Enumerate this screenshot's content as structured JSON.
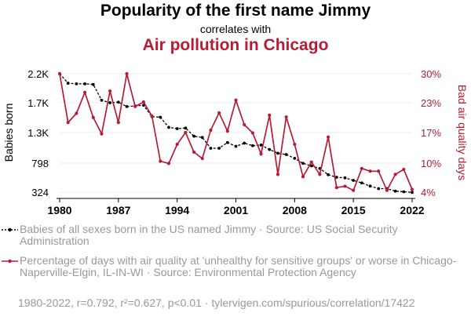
{
  "header": {
    "title": "Popularity of the first name Jimmy",
    "subtitle": "correlates with",
    "title2": "Air pollution in Chicago"
  },
  "legend": {
    "series1": "Babies of all sexes born in the US named Jimmy · Source: US Social Security Administration",
    "series2": "Percentage of days with air quality at 'unhealthy for sensitive groups' or worse in Chicago-Naperville-Elgin, IL-IN-WI · Source: Environmental Protection Agency"
  },
  "footer": "1980-2022, r=0.792, r²=0.627, p<0.01 · tylervigen.com/spurious/correlation/17422",
  "colors": {
    "series1": "#000000",
    "series2": "#b41d35",
    "gridline": "#eeeeee",
    "muted": "#999999"
  },
  "chart_data": {
    "type": "line",
    "title": "Popularity of the first name Jimmy correlates with Air pollution in Chicago",
    "xlabel": "",
    "ylabel_left": "Babies born",
    "ylabel_right": "Bad air quality days",
    "x_ticks": [
      "1980",
      "1987",
      "1994",
      "2001",
      "2008",
      "2015",
      "2022"
    ],
    "y_left_ticks": [
      "324",
      "798",
      "1.3K",
      "1.7K",
      "2.2K"
    ],
    "y_right_ticks": [
      "4%",
      "10%",
      "17%",
      "23%",
      "30%"
    ],
    "x": [
      1980,
      1981,
      1982,
      1983,
      1984,
      1985,
      1986,
      1987,
      1988,
      1989,
      1990,
      1991,
      1992,
      1993,
      1994,
      1995,
      1996,
      1997,
      1998,
      1999,
      2000,
      2001,
      2002,
      2003,
      2004,
      2005,
      2006,
      2007,
      2008,
      2009,
      2010,
      2011,
      2012,
      2013,
      2014,
      2015,
      2016,
      2017,
      2018,
      2019,
      2020,
      2021,
      2022
    ],
    "series": [
      {
        "name": "Babies born named Jimmy",
        "axis": "left",
        "xlim": [
          1980,
          2022
        ],
        "ylim": [
          324,
          2200
        ],
        "values": [
          2200,
          2050,
          2040,
          2040,
          2030,
          1780,
          1740,
          1750,
          1680,
          1690,
          1700,
          1520,
          1510,
          1350,
          1330,
          1340,
          1210,
          1190,
          1020,
          1020,
          1110,
          1050,
          1100,
          1060,
          1070,
          1000,
          940,
          920,
          860,
          780,
          740,
          700,
          600,
          560,
          550,
          510,
          470,
          420,
          380,
          380,
          340,
          330,
          320
        ]
      },
      {
        "name": "Bad air quality days (%)",
        "axis": "right",
        "xlim": [
          1980,
          2022
        ],
        "ylim": [
          4,
          30
        ],
        "values": [
          30.0,
          19.3,
          21.3,
          25.9,
          20.4,
          16.8,
          26.2,
          19.3,
          30.0,
          22.8,
          23.8,
          20.7,
          10.8,
          10.3,
          14.5,
          17.1,
          12.8,
          11.4,
          17.6,
          21.4,
          17.4,
          24.2,
          18.8,
          17.0,
          12.4,
          20.9,
          7.9,
          20.5,
          14.5,
          7.4,
          10.6,
          7.9,
          16.1,
          5.0,
          5.3,
          4.4,
          9.2,
          8.6,
          8.6,
          4.4,
          7.9,
          9.0,
          4.6
        ]
      }
    ]
  }
}
